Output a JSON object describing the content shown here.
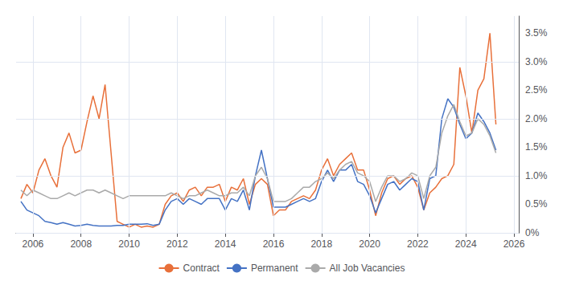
{
  "chart_data": {
    "type": "line",
    "x": [
      2005.5,
      2005.75,
      2006.0,
      2006.25,
      2006.5,
      2006.75,
      2007.0,
      2007.25,
      2007.5,
      2007.75,
      2008.0,
      2008.25,
      2008.5,
      2008.75,
      2009.0,
      2009.25,
      2009.5,
      2009.75,
      2010.0,
      2010.25,
      2010.5,
      2010.75,
      2011.0,
      2011.25,
      2011.5,
      2011.75,
      2012.0,
      2012.25,
      2012.5,
      2012.75,
      2013.0,
      2013.25,
      2013.5,
      2013.75,
      2014.0,
      2014.25,
      2014.5,
      2014.75,
      2015.0,
      2015.25,
      2015.5,
      2015.75,
      2016.0,
      2016.25,
      2016.5,
      2016.75,
      2017.0,
      2017.25,
      2017.5,
      2017.75,
      2018.0,
      2018.25,
      2018.5,
      2018.75,
      2019.0,
      2019.25,
      2019.5,
      2019.75,
      2020.0,
      2020.25,
      2020.5,
      2020.75,
      2021.0,
      2021.25,
      2021.5,
      2021.75,
      2022.0,
      2022.25,
      2022.5,
      2022.75,
      2023.0,
      2023.25,
      2023.5,
      2023.75,
      2024.0,
      2024.25,
      2024.5,
      2024.75,
      2025.0,
      2025.25
    ],
    "series": [
      {
        "name": "Contract",
        "color": "#E8703A",
        "values": [
          0.006,
          0.0085,
          0.007,
          0.011,
          0.013,
          0.01,
          0.008,
          0.015,
          0.0175,
          0.014,
          0.0145,
          0.0195,
          0.024,
          0.02,
          0.026,
          0.014,
          0.002,
          0.0015,
          0.001,
          0.0015,
          0.001,
          0.0012,
          0.001,
          0.0015,
          0.005,
          0.0065,
          0.007,
          0.0055,
          0.0075,
          0.008,
          0.0065,
          0.008,
          0.008,
          0.0085,
          0.0055,
          0.008,
          0.0075,
          0.0095,
          0.005,
          0.0085,
          0.0095,
          0.0085,
          0.003,
          0.004,
          0.004,
          0.0055,
          0.006,
          0.0065,
          0.006,
          0.0075,
          0.011,
          0.013,
          0.01,
          0.012,
          0.013,
          0.014,
          0.011,
          0.011,
          0.0075,
          0.003,
          0.007,
          0.0095,
          0.01,
          0.0085,
          0.0095,
          0.01,
          0.008,
          0.004,
          0.007,
          0.008,
          0.0095,
          0.01,
          0.012,
          0.029,
          0.024,
          0.0175,
          0.025,
          0.027,
          0.035,
          0.019
        ]
      },
      {
        "name": "Permanent",
        "color": "#4472C4",
        "values": [
          0.0055,
          0.004,
          0.0035,
          0.003,
          0.002,
          0.0018,
          0.0015,
          0.0018,
          0.0015,
          0.0012,
          0.0013,
          0.0015,
          0.0013,
          0.0012,
          0.0012,
          0.0012,
          0.0013,
          0.0013,
          0.0015,
          0.0015,
          0.0015,
          0.0016,
          0.0013,
          0.0015,
          0.004,
          0.0055,
          0.006,
          0.005,
          0.006,
          0.0055,
          0.005,
          0.006,
          0.006,
          0.006,
          0.004,
          0.006,
          0.0055,
          0.0075,
          0.004,
          0.01,
          0.0145,
          0.0095,
          0.0045,
          0.0045,
          0.0045,
          0.005,
          0.0055,
          0.006,
          0.0055,
          0.006,
          0.009,
          0.011,
          0.009,
          0.011,
          0.011,
          0.012,
          0.009,
          0.0085,
          0.0065,
          0.0035,
          0.006,
          0.0085,
          0.009,
          0.0075,
          0.0085,
          0.0095,
          0.009,
          0.004,
          0.0095,
          0.01,
          0.02,
          0.0235,
          0.022,
          0.019,
          0.0165,
          0.0175,
          0.021,
          0.0195,
          0.0175,
          0.0145
        ]
      },
      {
        "name": "All Job Vacancies",
        "color": "#AAAAAA",
        "values": [
          0.0075,
          0.0065,
          0.0075,
          0.007,
          0.0065,
          0.006,
          0.006,
          0.0065,
          0.007,
          0.0065,
          0.007,
          0.0075,
          0.0075,
          0.007,
          0.0075,
          0.007,
          0.0065,
          0.006,
          0.0065,
          0.0065,
          0.0065,
          0.0065,
          0.0065,
          0.0065,
          0.0065,
          0.007,
          0.0065,
          0.006,
          0.0065,
          0.0065,
          0.007,
          0.0075,
          0.007,
          0.0065,
          0.0065,
          0.007,
          0.007,
          0.008,
          0.0065,
          0.01,
          0.0115,
          0.0095,
          0.0055,
          0.0055,
          0.0055,
          0.006,
          0.007,
          0.008,
          0.008,
          0.009,
          0.0095,
          0.0105,
          0.0095,
          0.011,
          0.012,
          0.0125,
          0.0105,
          0.01,
          0.009,
          0.0055,
          0.008,
          0.01,
          0.01,
          0.009,
          0.0095,
          0.0105,
          0.01,
          0.006,
          0.01,
          0.0115,
          0.0175,
          0.0205,
          0.0225,
          0.0195,
          0.017,
          0.0175,
          0.02,
          0.019,
          0.017,
          0.014
        ]
      }
    ],
    "xlim": [
      2005.3,
      2026.2
    ],
    "xticks": [
      2006,
      2008,
      2010,
      2012,
      2014,
      2016,
      2018,
      2020,
      2022,
      2024,
      2026
    ],
    "ylim": [
      0,
      0.038
    ],
    "yticks": [
      {
        "value": 0,
        "label": "0%"
      },
      {
        "value": 0.005,
        "label": "0.5%"
      },
      {
        "value": 0.01,
        "label": "1.0%"
      },
      {
        "value": 0.015,
        "label": "1.5%"
      },
      {
        "value": 0.02,
        "label": "2.0%"
      },
      {
        "value": 0.025,
        "label": "2.5%"
      },
      {
        "value": 0.03,
        "label": "3.0%"
      },
      {
        "value": 0.035,
        "label": "3.5%"
      }
    ],
    "grid": true,
    "legend": "bottom"
  }
}
